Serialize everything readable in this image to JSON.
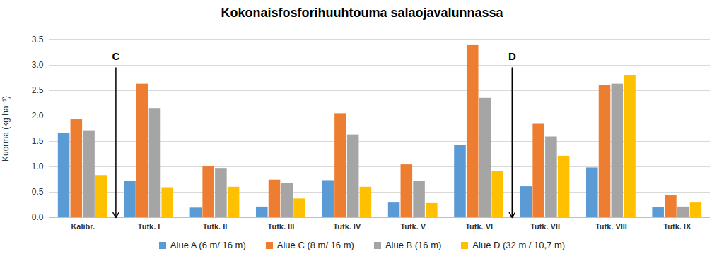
{
  "chart_data": {
    "type": "bar",
    "title": "Kokonaisfosforihuuhtouma salaojavalunnassa",
    "ylabel": "Kuorma (kg ha⁻¹)",
    "categories": [
      "Kalibr.",
      "Tutk. I",
      "Tutk. II",
      "Tutk. III",
      "Tutk. IV",
      "Tutk. V",
      "Tutk. VI",
      "Tutk. VII",
      "Tutk. VIII",
      "Tutk. IX"
    ],
    "series": [
      {
        "name": "Alue A (6 m/ 16 m)",
        "color": "#5b9bd5",
        "values": [
          1.66,
          0.72,
          0.19,
          0.21,
          0.73,
          0.29,
          1.43,
          0.61,
          0.98,
          0.2
        ]
      },
      {
        "name": "Alue C (8 m/ 16 m)",
        "color": "#ed7d31",
        "values": [
          1.93,
          2.63,
          1.0,
          0.74,
          2.05,
          1.04,
          3.39,
          1.84,
          2.6,
          0.43
        ]
      },
      {
        "name": "Alue B (16 m)",
        "color": "#a5a5a5",
        "values": [
          1.7,
          2.15,
          0.97,
          0.67,
          1.63,
          0.72,
          2.35,
          1.59,
          2.63,
          0.21
        ]
      },
      {
        "name": "Alue D (32 m / 10,7 m)",
        "color": "#ffc000",
        "values": [
          0.83,
          0.59,
          0.6,
          0.37,
          0.6,
          0.28,
          0.91,
          1.21,
          2.8,
          0.29
        ]
      }
    ],
    "ylim": [
      0,
      3.5
    ],
    "yticks": [
      {
        "value": 0,
        "label": "0.0"
      },
      {
        "value": 0.5,
        "label": "0.5"
      },
      {
        "value": 1,
        "label": "1.0"
      },
      {
        "value": 1.5,
        "label": "1.5"
      },
      {
        "value": 2,
        "label": "2.0"
      },
      {
        "value": 2.5,
        "label": "2.5"
      },
      {
        "value": 3,
        "label": "3.0"
      },
      {
        "value": 3.5,
        "label": "3.5"
      }
    ],
    "grid": true,
    "legend": "bottom",
    "annotations": [
      {
        "text": "C",
        "x": 0.5,
        "y": 2.95
      },
      {
        "text": "D",
        "x": 6.5,
        "y": 2.95
      }
    ]
  }
}
